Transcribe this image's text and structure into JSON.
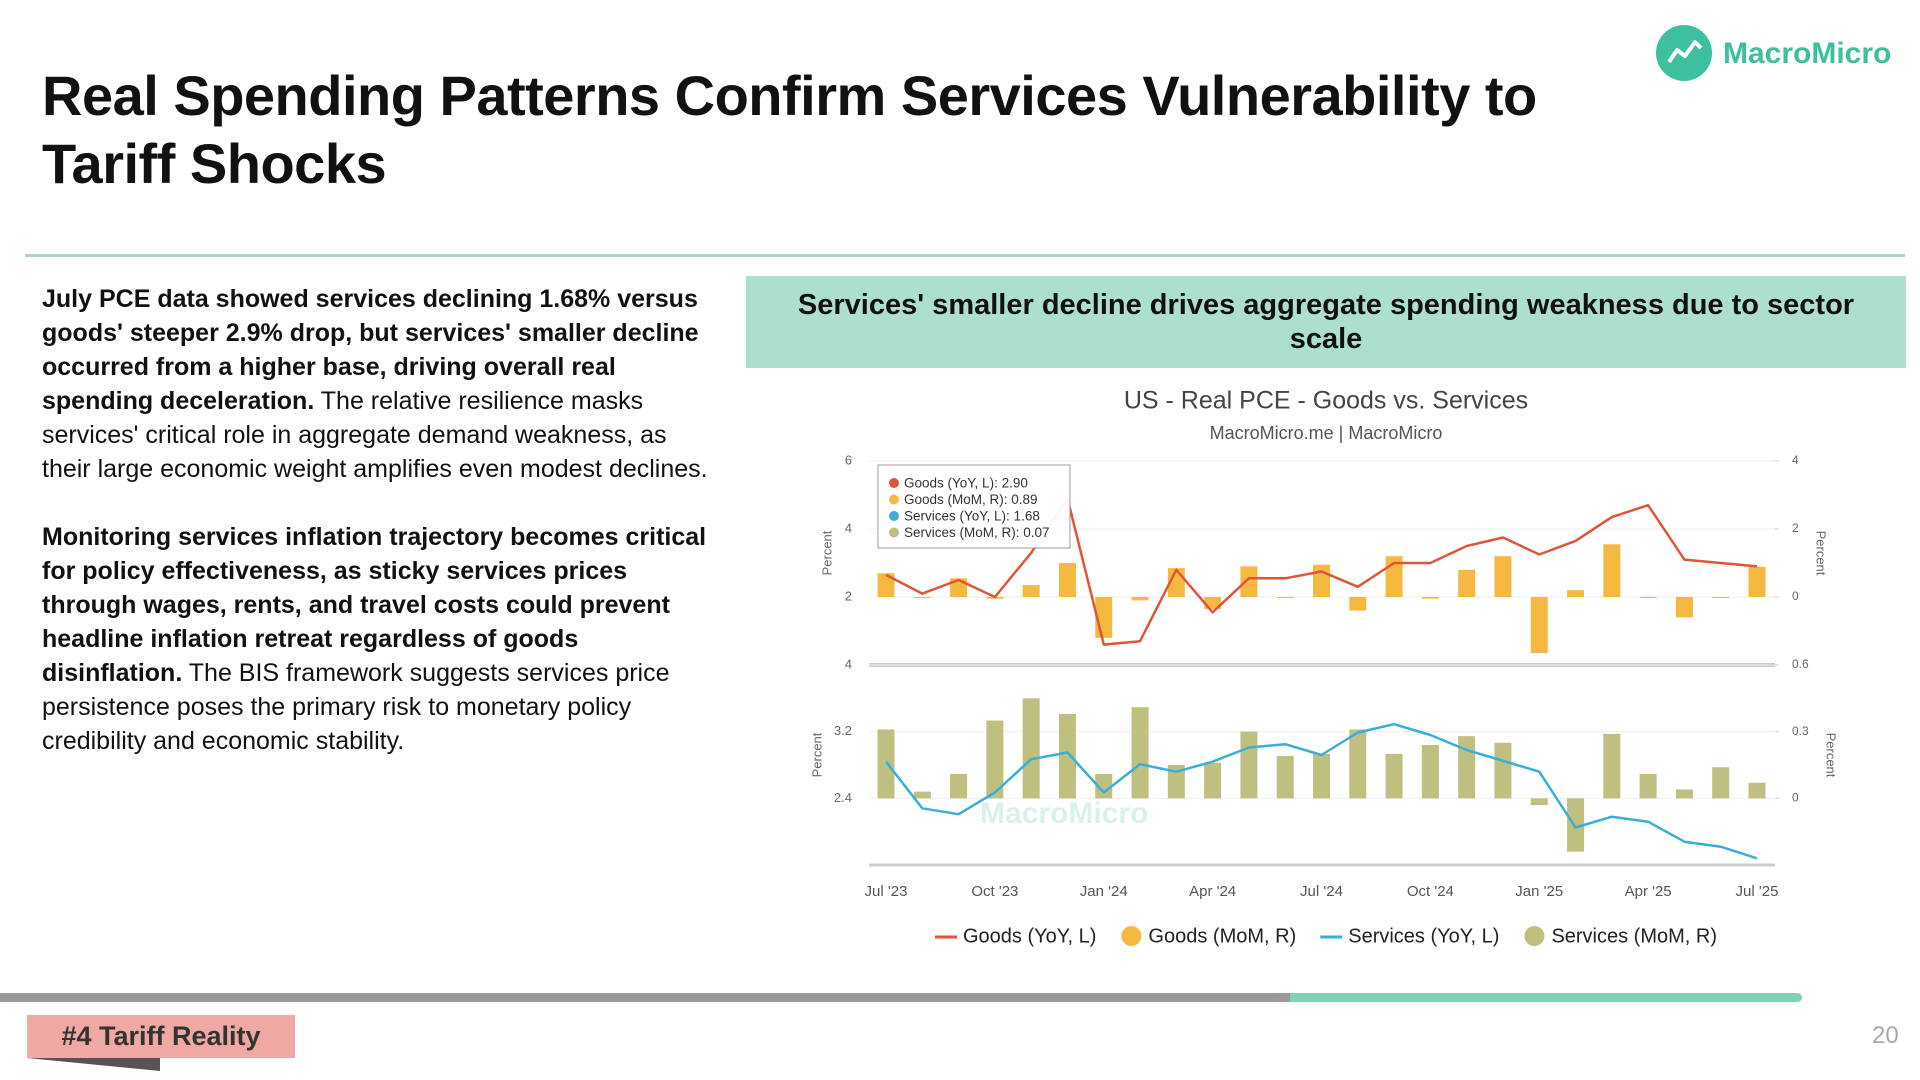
{
  "header": {
    "title": "Real Spending Patterns Confirm Services Vulnerability to Tariff Shocks",
    "logo": "MacroMicro"
  },
  "body": {
    "paragraphs": [
      {
        "bold": "July PCE data showed services declining 1.68% versus goods' steeper 2.9% drop, but services' smaller decline occurred from a higher base, driving overall real spending deceleration.",
        "rest": " The relative resilience masks services' critical role in aggregate demand weakness, as their large economic weight amplifies even modest declines."
      },
      {
        "bold": "Monitoring services inflation trajectory becomes critical for policy effectiveness, as sticky services prices through wages, rents, and travel costs could prevent headline inflation retreat regardless of goods disinflation.",
        "rest": " The BIS framework suggests services price persistence poses the primary risk to monetary policy credibility and economic stability."
      }
    ]
  },
  "chart_heading": "Services' smaller decline drives aggregate spending weakness due to sector scale",
  "footer": {
    "tag": "#4 Tariff Reality",
    "page": "20"
  },
  "chart_data": {
    "type": "combo",
    "title": "US - Real PCE - Goods vs. Services",
    "subtitle": "MacroMicro.me | MacroMicro",
    "watermark": "MacroMicro",
    "categories": [
      "Jul '23",
      null,
      null,
      "Oct '23",
      null,
      null,
      "Jan '24",
      null,
      null,
      "Apr '24",
      null,
      null,
      "Jul '24",
      null,
      null,
      "Oct '24",
      null,
      null,
      "Jan '25",
      null,
      null,
      "Apr '25",
      null,
      null,
      "Jul '25"
    ],
    "grid": true,
    "tooltip": [
      "Goods (YoY, L): 2.90",
      "Goods (MoM, R): 0.89",
      "Services (YoY, L): 1.68",
      "Services (MoM, R): 0.07"
    ],
    "panels": [
      {
        "ylabel": "Percent",
        "y2label": "Percent",
        "ylim": [
          0,
          6
        ],
        "yticks": [
          2,
          4,
          6
        ],
        "y2lim": [
          -2,
          4
        ],
        "y2ticks": [
          0,
          2,
          4
        ],
        "series": [
          {
            "name": "Goods (YoY, L)",
            "type": "line",
            "color": "#e0553a",
            "values": [
              2.65,
              2.1,
              2.5,
              2.0,
              3.3,
              4.9,
              0.6,
              0.7,
              2.8,
              1.55,
              2.55,
              2.55,
              2.75,
              2.3,
              3.0,
              3.0,
              3.5,
              3.75,
              3.25,
              3.65,
              4.35,
              4.7,
              3.1,
              3.0,
              2.9
            ]
          },
          {
            "name": "Goods (MoM, R)",
            "type": "bar",
            "axis": "y2",
            "color": "#f5b942",
            "values": [
              0.7,
              0,
              0.55,
              -0.05,
              0.35,
              1.0,
              -1.2,
              -0.1,
              0.85,
              -0.35,
              0.9,
              0,
              0.95,
              -0.4,
              1.2,
              -0.05,
              0.8,
              1.2,
              -1.65,
              0.2,
              1.55,
              0,
              -0.6,
              0,
              0.89
            ]
          }
        ]
      },
      {
        "ylabel": "Percent",
        "y2label": "Percent",
        "ylim": [
          1.6,
          4
        ],
        "yticks": [
          2.4,
          3.2,
          4
        ],
        "y2lim": [
          -0.3,
          0.6
        ],
        "y2ticks": [
          0,
          0.3,
          0.6
        ],
        "series": [
          {
            "name": "Services (YoY, L)",
            "type": "line",
            "color": "#3aaed8",
            "values": [
              2.84,
              2.28,
              2.21,
              2.47,
              2.87,
              2.95,
              2.47,
              2.81,
              2.72,
              2.84,
              3.01,
              3.05,
              2.92,
              3.19,
              3.29,
              3.16,
              2.98,
              2.85,
              2.72,
              2.05,
              2.18,
              2.12,
              1.88,
              1.82,
              1.68
            ]
          },
          {
            "name": "Services (MoM, R)",
            "type": "bar",
            "axis": "y2",
            "color": "#bfbf80",
            "values": [
              0.31,
              0.03,
              0.11,
              0.35,
              0.45,
              0.38,
              0.11,
              0.41,
              0.15,
              0.16,
              0.3,
              0.19,
              0.2,
              0.31,
              0.2,
              0.24,
              0.28,
              0.25,
              -0.03,
              -0.24,
              0.29,
              0.11,
              0.04,
              0.14,
              0.07
            ]
          }
        ]
      }
    ]
  }
}
